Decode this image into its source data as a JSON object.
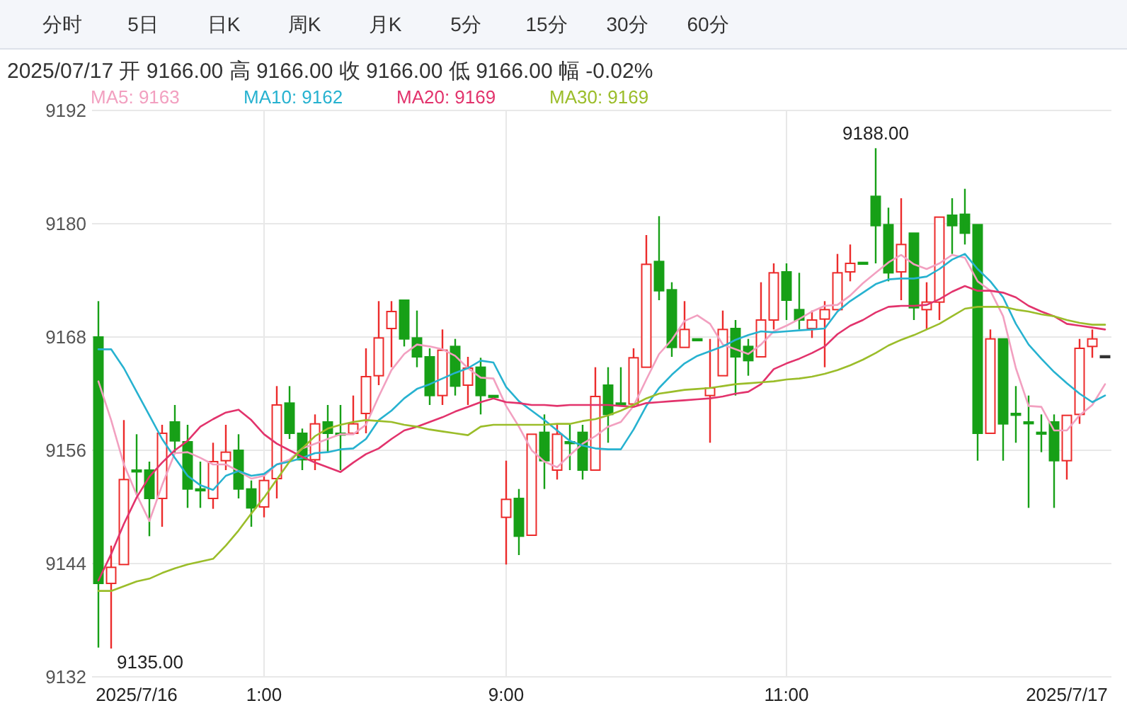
{
  "chart_data": {
    "type": "candlestick",
    "subtitle": "2025/07/17 开 9166.00 高 9166.00 收 9166.00 低 9166.00 幅 -0.02%",
    "categories": [
      null,
      null,
      null,
      "2025/7/16",
      null,
      null,
      null,
      null,
      null,
      null,
      null,
      null,
      null,
      "1:00",
      null,
      null,
      null,
      null,
      null,
      null,
      null,
      null,
      null,
      null,
      null,
      null,
      null,
      null,
      null,
      null,
      null,
      null,
      "9:00",
      null,
      null,
      null,
      null,
      null,
      null,
      null,
      null,
      null,
      null,
      null,
      null,
      null,
      null,
      null,
      null,
      null,
      null,
      null,
      null,
      null,
      "11:00",
      null,
      null,
      null,
      null,
      null,
      null,
      null,
      null,
      null,
      null,
      null,
      null,
      null,
      null,
      null,
      null,
      null,
      null,
      null,
      null,
      null,
      "2025/7/17",
      null,
      null,
      null
    ],
    "series": [
      {
        "ohlc": [
          [
            9168.0,
            9171.8,
            9135.1,
            9141.9
          ],
          [
            9141.9,
            9145.9,
            9135.0,
            9143.6
          ],
          [
            9143.9,
            9159.2,
            9143.9,
            9152.9
          ],
          [
            9153.9,
            9157.7,
            9151.3,
            9153.9
          ],
          [
            9153.9,
            9154.8,
            9146.9,
            9150.9
          ],
          [
            9150.9,
            9158.7,
            9147.9,
            9157.8
          ],
          [
            9159.0,
            9160.8,
            9155.7,
            9157.0
          ],
          [
            9156.9,
            9158.7,
            9149.9,
            9151.9
          ],
          [
            9151.9,
            9154.8,
            9149.9,
            9151.9
          ],
          [
            9150.9,
            9156.8,
            9149.8,
            9154.8
          ],
          [
            9154.9,
            9158.7,
            9153.9,
            9155.8
          ],
          [
            9156.0,
            9157.7,
            9150.9,
            9151.9
          ],
          [
            9151.9,
            9152.8,
            9147.9,
            9149.9
          ],
          [
            9150.0,
            9153.3,
            9148.9,
            9152.8
          ],
          [
            9153.0,
            9162.8,
            9150.9,
            9160.8
          ],
          [
            9161.0,
            9162.8,
            9157.2,
            9157.8
          ],
          [
            9157.8,
            9158.3,
            9153.9,
            9155.0
          ],
          [
            9155.0,
            9159.8,
            9153.9,
            9158.8
          ],
          [
            9159.0,
            9160.8,
            9155.8,
            9157.8
          ],
          [
            9157.8,
            9160.8,
            9153.9,
            9157.8
          ],
          [
            9157.8,
            9161.8,
            9157.8,
            9158.8
          ],
          [
            9159.9,
            9166.8,
            9157.8,
            9163.8
          ],
          [
            9163.9,
            9171.8,
            9162.9,
            9167.9
          ],
          [
            9168.9,
            9171.8,
            9164.8,
            9170.7
          ],
          [
            9171.9,
            9171.9,
            9167.0,
            9167.8
          ],
          [
            9167.9,
            9170.8,
            9164.8,
            9165.9
          ],
          [
            9165.9,
            9166.8,
            9160.8,
            9161.8
          ],
          [
            9161.8,
            9168.8,
            9160.8,
            9166.6
          ],
          [
            9167.0,
            9167.8,
            9161.8,
            9162.8
          ],
          [
            9162.9,
            9165.9,
            9160.8,
            9164.7
          ],
          [
            9164.8,
            9165.8,
            9159.8,
            9161.8
          ],
          [
            9161.8,
            9161.8,
            9161.8,
            9161.8
          ],
          [
            9148.9,
            9154.9,
            9143.9,
            9150.8
          ],
          [
            9150.9,
            9151.9,
            9144.9,
            9146.9
          ],
          [
            9147.0,
            9157.7,
            9147.0,
            9157.7
          ],
          [
            9157.9,
            9159.8,
            9151.9,
            9154.9
          ],
          [
            9153.9,
            9158.7,
            9152.9,
            9157.7
          ],
          [
            9156.9,
            9158.7,
            9153.9,
            9156.9
          ],
          [
            9157.9,
            9158.7,
            9152.9,
            9153.9
          ],
          [
            9153.9,
            9164.8,
            9153.9,
            9161.7
          ],
          [
            9162.9,
            9164.8,
            9156.8,
            9159.8
          ],
          [
            9161.0,
            9164.8,
            9160.8,
            9161.0
          ],
          [
            9160.9,
            9166.8,
            9160.9,
            9165.8
          ],
          [
            9164.8,
            9178.8,
            9164.8,
            9175.7
          ],
          [
            9176.0,
            9180.8,
            9171.9,
            9172.9
          ],
          [
            9173.0,
            9173.8,
            9165.9,
            9166.9
          ],
          [
            9166.9,
            9171.8,
            9166.9,
            9168.8
          ],
          [
            9167.8,
            9167.8,
            9167.8,
            9167.8
          ],
          [
            9161.8,
            9167.8,
            9156.8,
            9162.6
          ],
          [
            9163.9,
            9170.8,
            9163.9,
            9168.8
          ],
          [
            9168.9,
            9169.8,
            9161.8,
            9165.9
          ],
          [
            9167.0,
            9167.8,
            9163.9,
            9165.5
          ],
          [
            9165.9,
            9173.8,
            9165.9,
            9169.8
          ],
          [
            9169.8,
            9175.8,
            9168.8,
            9174.8
          ],
          [
            9174.9,
            9175.8,
            9169.8,
            9171.9
          ],
          [
            9170.9,
            9174.8,
            9168.8,
            9169.8
          ],
          [
            9168.9,
            9170.8,
            9167.9,
            9169.8
          ],
          [
            9169.9,
            9171.8,
            9164.8,
            9170.9
          ],
          [
            9170.9,
            9176.8,
            9170.9,
            9174.8
          ],
          [
            9174.9,
            9177.8,
            9173.9,
            9175.8
          ],
          [
            9175.9,
            9175.9,
            9175.9,
            9175.9
          ],
          [
            9182.9,
            9188.0,
            9175.8,
            9179.8
          ],
          [
            9179.9,
            9181.7,
            9173.9,
            9174.8
          ],
          [
            9174.9,
            9182.7,
            9171.9,
            9177.8
          ],
          [
            9179.0,
            9179.0,
            9169.8,
            9171.1
          ],
          [
            9170.9,
            9173.8,
            9168.8,
            9171.7
          ],
          [
            9171.7,
            9180.7,
            9169.8,
            9180.7
          ],
          [
            9180.9,
            9182.7,
            9176.8,
            9179.8
          ],
          [
            9181.0,
            9183.7,
            9177.8,
            9179.0
          ],
          [
            9179.9,
            9179.9,
            9154.9,
            9157.8
          ],
          [
            9157.8,
            9168.8,
            9157.8,
            9167.8
          ],
          [
            9167.8,
            9167.8,
            9154.9,
            9158.8
          ],
          [
            9159.9,
            9162.8,
            9156.8,
            9159.9
          ],
          [
            9159.0,
            9161.8,
            9149.9,
            9159.0
          ],
          [
            9157.9,
            9159.8,
            9155.8,
            9157.9
          ],
          [
            9159.0,
            9159.8,
            9149.9,
            9154.9
          ],
          [
            9154.9,
            9159.7,
            9152.9,
            9159.7
          ],
          [
            9159.8,
            9167.8,
            9158.8,
            9166.8
          ],
          [
            9167.0,
            9168.8,
            9165.8,
            9167.8
          ],
          [
            9166.0,
            9166.0,
            9166.0,
            9166.0
          ]
        ],
        "colors": [
          "#17a017",
          "#ec2b2b",
          "#ec2b2b",
          "#17a017",
          "#17a017",
          "#ec2b2b",
          "#17a017",
          "#17a017",
          "#17a017",
          "#ec2b2b",
          "#ec2b2b",
          "#17a017",
          "#17a017",
          "#ec2b2b",
          "#ec2b2b",
          "#17a017",
          "#17a017",
          "#ec2b2b",
          "#17a017",
          "#17a017",
          "#ec2b2b",
          "#ec2b2b",
          "#ec2b2b",
          "#ec2b2b",
          "#17a017",
          "#17a017",
          "#17a017",
          "#ec2b2b",
          "#17a017",
          "#ec2b2b",
          "#17a017",
          "#17a017",
          "#ec2b2b",
          "#17a017",
          "#ec2b2b",
          "#17a017",
          "#ec2b2b",
          "#17a017",
          "#17a017",
          "#ec2b2b",
          "#17a017",
          "#17a017",
          "#ec2b2b",
          "#ec2b2b",
          "#17a017",
          "#17a017",
          "#ec2b2b",
          "#17a017",
          "#ec2b2b",
          "#ec2b2b",
          "#17a017",
          "#17a017",
          "#ec2b2b",
          "#ec2b2b",
          "#17a017",
          "#17a017",
          "#ec2b2b",
          "#ec2b2b",
          "#ec2b2b",
          "#ec2b2b",
          "#17a017",
          "#17a017",
          "#17a017",
          "#ec2b2b",
          "#17a017",
          "#ec2b2b",
          "#ec2b2b",
          "#17a017",
          "#17a017",
          "#17a017",
          "#ec2b2b",
          "#17a017",
          "#17a017",
          "#17a017",
          "#17a017",
          "#17a017",
          "#ec2b2b",
          "#ec2b2b",
          "#ec2b2b",
          "#333333"
        ]
      },
      {
        "type": "line",
        "name": "MA5: 9163",
        "color": "#f2a0c0",
        "values": [
          9163.3,
          9159.2,
          9154.5,
          9151.3,
          9148.5,
          9152.3,
          9155.7,
          9155.8,
          9155.2,
          9154.5,
          9154.5,
          9153.8,
          9153.0,
          9153.3,
          9154.5,
          9155.0,
          9156.2,
          9156.7,
          9157.2,
          9157.7,
          9157.7,
          9158.7,
          9161.7,
          9164.5,
          9166.2,
          9167.2,
          9167.0,
          9166.7,
          9166.0,
          9164.7,
          9163.7,
          9163.6,
          9160.7,
          9158.5,
          9156.0,
          9154.8,
          9154.2,
          9155.5,
          9156.7,
          9157.5,
          9158.5,
          9159.0,
          9160.7,
          9163.5,
          9166.2,
          9167.7,
          9169.7,
          9170.3,
          9169.4,
          9167.2,
          9166.7,
          9166.2,
          9167.2,
          9168.6,
          9169.2,
          9169.9,
          9170.7,
          9171.3,
          9171.4,
          9172.4,
          9173.7,
          9174.8,
          9175.9,
          9176.7,
          9175.7,
          9175.2,
          9175.8,
          9176.7,
          9176.4,
          9173.9,
          9172.9,
          9170.2,
          9164.7,
          9160.7,
          9160.6,
          9158.1,
          9158.1,
          9159.7,
          9160.8,
          9163.0
        ]
      },
      {
        "type": "line",
        "name": "MA10: 9162",
        "color": "#27b2d0",
        "values": [
          9166.7,
          9166.7,
          9164.7,
          9162.2,
          9159.7,
          9157.2,
          9155.2,
          9153.3,
          9152.3,
          9151.8,
          9153.3,
          9153.8,
          9153.3,
          9153.5,
          9154.5,
          9154.8,
          9155.2,
          9155.7,
          9155.8,
          9156.1,
          9156.2,
          9157.2,
          9159.2,
          9160.2,
          9161.5,
          9162.5,
          9163.0,
          9163.6,
          9164.2,
          9164.7,
          9165.5,
          9165.3,
          9162.7,
          9161.2,
          9160.2,
          9159.2,
          9158.1,
          9157.0,
          9156.5,
          9156.2,
          9156.1,
          9156.1,
          9158.2,
          9160.7,
          9162.6,
          9164.0,
          9165.2,
          9166.0,
          9166.5,
          9167.0,
          9167.7,
          9168.2,
          9168.6,
          9168.5,
          9168.6,
          9168.7,
          9168.8,
          9168.9,
          9170.7,
          9171.8,
          9172.7,
          9173.6,
          9174.1,
          9174.2,
          9174.2,
          9174.4,
          9175.2,
          9176.2,
          9176.8,
          9175.2,
          9173.9,
          9172.2,
          9169.4,
          9167.2,
          9165.7,
          9164.3,
          9163.1,
          9162.0,
          9161.1,
          9161.8
        ]
      },
      {
        "type": "line",
        "name": "MA20: 9169",
        "color": "#e2336c",
        "values": [
          9142.2,
          9145.0,
          9148.2,
          9151.0,
          9153.2,
          9154.7,
          9156.0,
          9157.0,
          9158.5,
          9159.3,
          9160.0,
          9160.3,
          9159.2,
          9157.7,
          9156.7,
          9156.0,
          9155.3,
          9154.7,
          9154.2,
          9153.7,
          9154.7,
          9155.6,
          9156.2,
          9157.2,
          9158.1,
          9158.5,
          9159.0,
          9159.5,
          9160.1,
          9160.6,
          9161.1,
          9161.5,
          9161.1,
          9161.0,
          9160.8,
          9160.8,
          9160.7,
          9160.8,
          9160.8,
          9160.8,
          9160.8,
          9160.7,
          9160.6,
          9161.0,
          9161.1,
          9161.2,
          9161.3,
          9161.4,
          9161.5,
          9161.7,
          9162.0,
          9162.2,
          9163.0,
          9164.6,
          9165.2,
          9165.7,
          9166.3,
          9167.0,
          9168.3,
          9169.2,
          9169.8,
          9170.6,
          9171.2,
          9171.3,
          9171.3,
          9171.4,
          9172.0,
          9172.8,
          9173.4,
          9172.9,
          9172.9,
          9172.7,
          9172.2,
          9171.3,
          9170.7,
          9170.2,
          9169.4,
          9169.2,
          9169.0,
          9168.8
        ]
      },
      {
        "type": "line",
        "name": "MA30: 9169",
        "color": "#9bbd2a",
        "values": [
          9141.1,
          9141.1,
          9141.6,
          9142.1,
          9142.4,
          9143.0,
          9143.5,
          9143.9,
          9144.2,
          9144.5,
          9145.9,
          9147.5,
          9149.3,
          9151.0,
          9152.9,
          9154.8,
          9156.2,
          9157.5,
          9158.3,
          9158.7,
          9159.0,
          9159.2,
          9159.1,
          9159.0,
          9158.7,
          9158.5,
          9158.2,
          9158.0,
          9157.8,
          9157.6,
          9158.5,
          9158.7,
          9158.7,
          9158.7,
          9158.7,
          9158.7,
          9158.8,
          9158.8,
          9159.1,
          9159.3,
          9159.7,
          9160.2,
          9160.8,
          9161.5,
          9162.0,
          9162.2,
          9162.4,
          9162.5,
          9162.6,
          9162.8,
          9163.0,
          9163.1,
          9163.2,
          9163.3,
          9163.5,
          9163.6,
          9163.8,
          9164.1,
          9164.5,
          9165.0,
          9165.6,
          9166.3,
          9167.1,
          9167.7,
          9168.2,
          9168.8,
          9169.4,
          9170.2,
          9171.0,
          9171.2,
          9171.2,
          9171.2,
          9170.9,
          9170.7,
          9170.4,
          9170.2,
          9169.8,
          9169.5,
          9169.3,
          9169.3
        ]
      }
    ],
    "ylim": [
      9132,
      9192
    ],
    "yticks": [
      9132,
      9144,
      9156,
      9168,
      9180,
      9192
    ],
    "grid": true,
    "legend": "top left",
    "annotations": [
      "分时",
      "5日",
      "日K",
      "周K",
      "月K",
      "5分",
      "15分",
      "30分",
      "60分",
      {
        "text": "9188.00",
        "y": 9188
      },
      "9135.00"
    ]
  }
}
